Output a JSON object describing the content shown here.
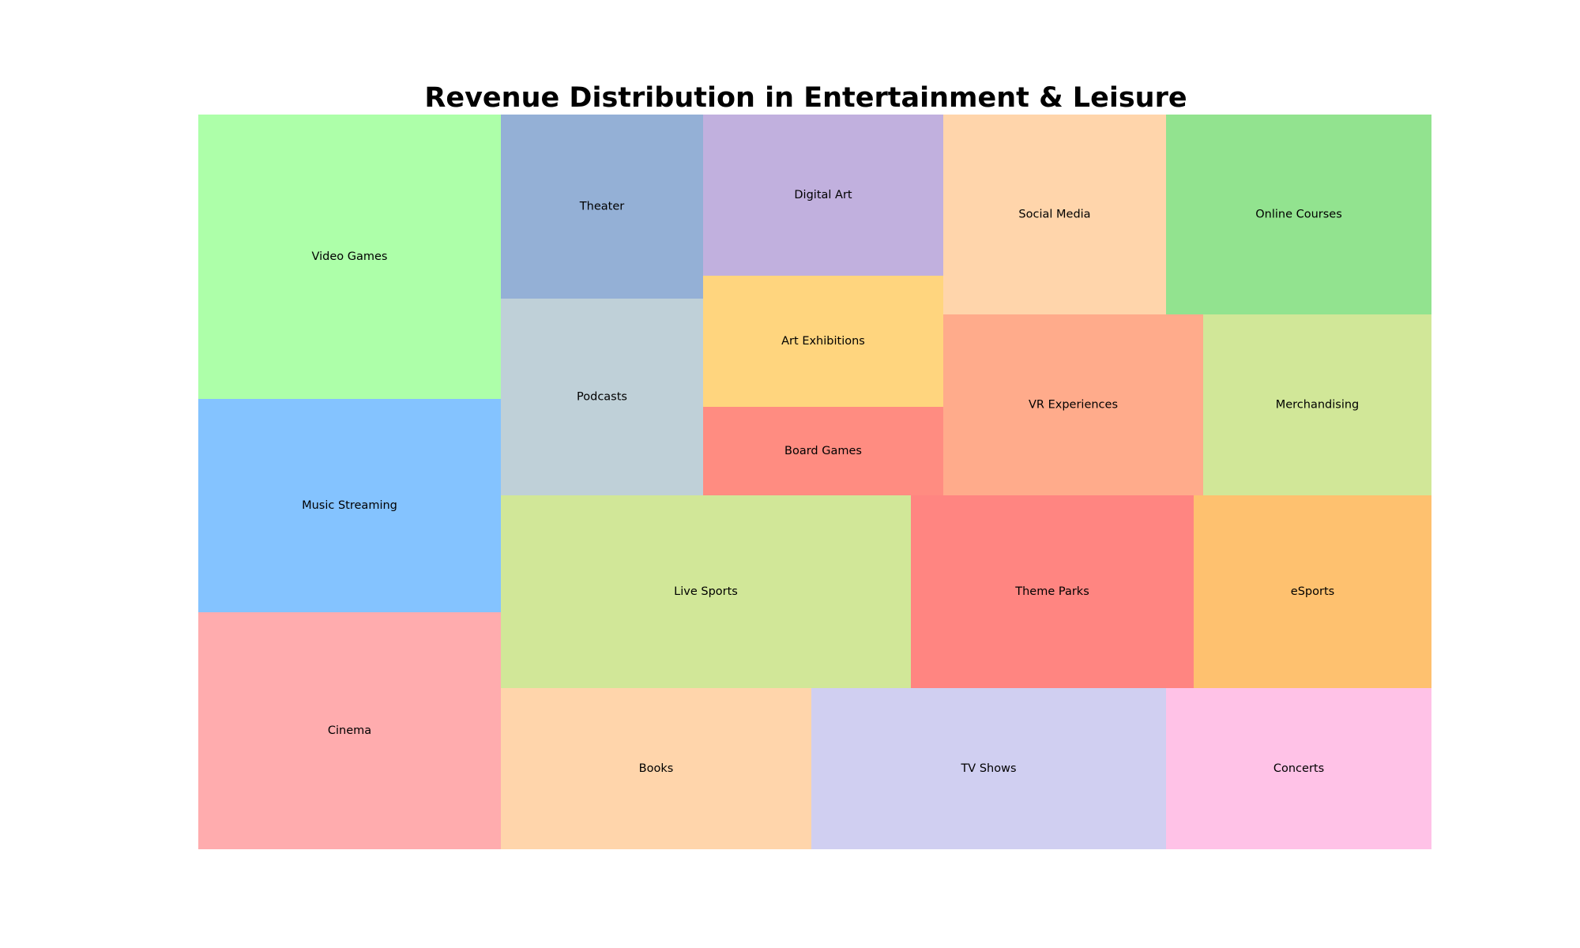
{
  "chart_data": {
    "type": "treemap",
    "title": "Revenue Distribution in Entertainment & Leisure",
    "categories": [
      "Video Games",
      "Music Streaming",
      "Cinema",
      "Theater",
      "Podcasts",
      "Digital Art",
      "Art Exhibitions",
      "Board Games",
      "Social Media",
      "Online Courses",
      "VR Experiences",
      "Merchandising",
      "Live Sports",
      "Theme Parks",
      "eSports",
      "Books",
      "TV Shows",
      "Concerts"
    ],
    "values": [
      24.0,
      18.0,
      20.0,
      10.5,
      11.3,
      10.8,
      8.8,
      6.0,
      12.4,
      14.8,
      13.3,
      11.7,
      22.5,
      15.5,
      13.1,
      13.3,
      15.2,
      11.4
    ],
    "colors": [
      "#adffa9",
      "#84c3ff",
      "#ffacae",
      "#94b0d6",
      "#bfd0d8",
      "#c1b0de",
      "#ffd57e",
      "#ff8c81",
      "#ffd5ab",
      "#92e38f",
      "#ffab8b",
      "#d1e798",
      "#d1e798",
      "#ff8581",
      "#fec16f",
      "#ffd5ab",
      "#d0cff1",
      "#ffc2e7"
    ],
    "grid": false,
    "legend": "none"
  }
}
